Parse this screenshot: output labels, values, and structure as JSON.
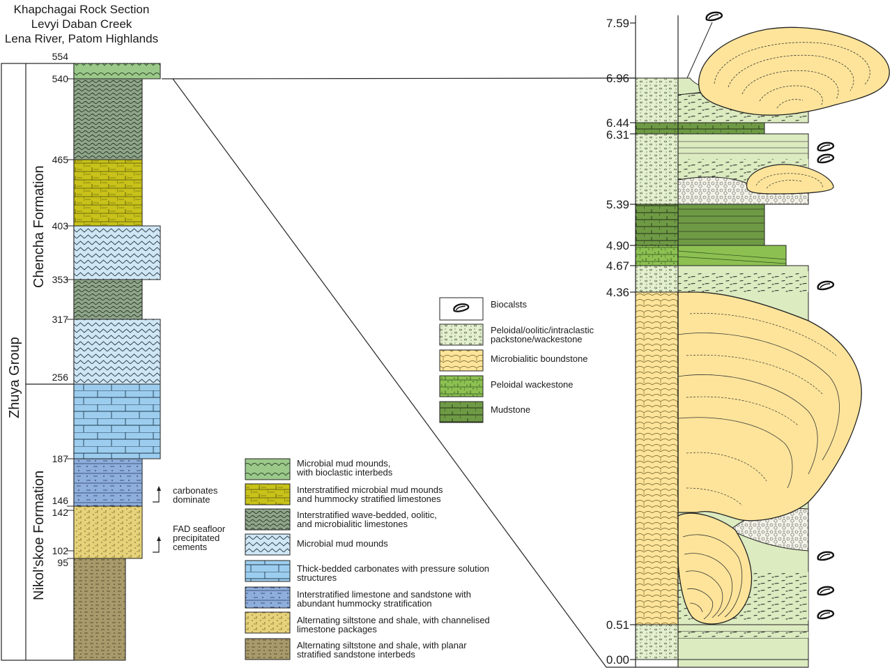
{
  "title": {
    "line1": "Khapchagai Rock Section",
    "line2": "Levyi Daban Creek",
    "line3": "Lena River, Patom Highlands"
  },
  "group_label": "Zhuya Group",
  "formations": {
    "upper": "Chencha Formation",
    "lower": "Nikol'skoe Formation"
  },
  "left_ticks": [
    "554",
    "540",
    "465",
    "403",
    "353",
    "317",
    "256",
    "187",
    "146",
    "142",
    "102",
    "95"
  ],
  "right_ticks": [
    "7.59",
    "6.96",
    "6.44",
    "6.31",
    "5.39",
    "4.90",
    "4.67",
    "4.36",
    "0.51",
    "0.00"
  ],
  "annotations": {
    "carbonates": [
      "carbonates",
      "dominate"
    ],
    "fad": [
      "FAD seafloor",
      "precipitated",
      "cements"
    ]
  },
  "legend_main": [
    {
      "line1": "Microbial mud mounds,",
      "line2": "with bioclastic interbeds"
    },
    {
      "line1": "Interstratified microbial mud mounds",
      "line2": "and hummocky stratified limestones"
    },
    {
      "line1": "Interstratified wave-bedded, oolitic,",
      "line2": "and microbialitic limestones"
    },
    {
      "line1": "Microbial mud mounds",
      "line2": ""
    },
    {
      "line1": "Thick-bedded carbonates with pressure solution",
      "line2": "structures"
    },
    {
      "line1": "Interstratified limestone and sandstone with",
      "line2": "abundant hummocky stratification"
    },
    {
      "line1": "Alternating siltstone and shale, with channelised",
      "line2": "limestone packages"
    },
    {
      "line1": "Alternating siltstone and shale, with planar",
      "line2": "stratified sandstone interbeds"
    }
  ],
  "legend_detail": [
    {
      "line1": "Biocalsts",
      "line2": ""
    },
    {
      "line1": "Peloidal/oolitic/intraclastic",
      "line2": "packstone/wackestone"
    },
    {
      "line1": "Microbialitic boundstone",
      "line2": ""
    },
    {
      "line1": "Peloidal wackestone",
      "line2": ""
    },
    {
      "line1": "Mudstone",
      "line2": ""
    }
  ],
  "colors": {
    "mound_green": "#9bc98a",
    "olive_yellow": "#c8c21a",
    "wave_gray_green": "#8fa58a",
    "pale_blue": "#cfe6f5",
    "sky_blue": "#9dcdee",
    "mid_blue": "#8eaedc",
    "sand_yellow": "#e6d27a",
    "brown_olive": "#a89a6a",
    "boundstone": "#fde49a",
    "peloidal_green": "#8cc152",
    "mudstone_green": "#6f9a45",
    "pale_green": "#dcebc0"
  },
  "icons": [
    "bioclast-icon"
  ]
}
